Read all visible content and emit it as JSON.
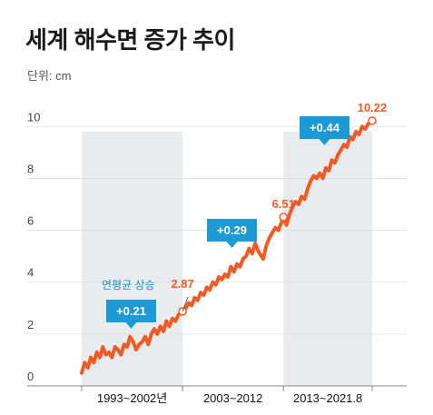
{
  "title": "세계 해수면 증가 추이",
  "unit_label": "단위: cm",
  "chart_data": {
    "type": "line",
    "ylim": [
      0,
      10.5
    ],
    "xlim": [
      1993,
      2021.8
    ],
    "y_ticks": [
      "0",
      "2",
      "4",
      "6",
      "8",
      "10"
    ],
    "periods": [
      {
        "label": "1993~2002년",
        "start": 1993,
        "end": 2003,
        "shaded": true
      },
      {
        "label": "2003~2012",
        "start": 2003,
        "end": 2013,
        "shaded": false
      },
      {
        "label": "2013~2021.8",
        "start": 2013,
        "end": 2021.8,
        "shaded": true
      }
    ],
    "rate_badges": [
      {
        "period": "1993~2002",
        "text": "+0.21"
      },
      {
        "period": "2003~2012",
        "text": "+0.29"
      },
      {
        "period": "2013~2021.8",
        "text": "+0.44"
      }
    ],
    "annotations": [
      {
        "x": 2003,
        "y": 2.87,
        "label": "2.87"
      },
      {
        "x": 2013,
        "y": 6.51,
        "label": "6.51"
      },
      {
        "x": 2021.8,
        "y": 10.22,
        "label": "10.22"
      }
    ],
    "avg_label": "연평균 상승",
    "series": [
      {
        "color": "#f15a24",
        "x": [
          1993.0,
          1993.3,
          1993.6,
          1993.9,
          1994.2,
          1994.5,
          1994.8,
          1995.1,
          1995.4,
          1995.7,
          1996.0,
          1996.3,
          1996.6,
          1996.9,
          1997.2,
          1997.5,
          1997.8,
          1998.1,
          1998.4,
          1998.7,
          1999.0,
          1999.3,
          1999.6,
          1999.9,
          2000.2,
          2000.5,
          2000.8,
          2001.1,
          2001.4,
          2001.7,
          2002.0,
          2002.3,
          2002.6,
          2003.0,
          2003.3,
          2003.6,
          2003.9,
          2004.2,
          2004.5,
          2004.8,
          2005.1,
          2005.4,
          2005.7,
          2006.0,
          2006.3,
          2006.6,
          2006.9,
          2007.2,
          2007.5,
          2007.8,
          2008.1,
          2008.4,
          2008.7,
          2009.0,
          2009.3,
          2009.6,
          2009.9,
          2010.2,
          2010.5,
          2010.8,
          2011.0,
          2011.3,
          2011.6,
          2011.9,
          2012.2,
          2012.5,
          2012.8,
          2013.0,
          2013.3,
          2013.6,
          2013.9,
          2014.2,
          2014.5,
          2014.8,
          2015.1,
          2015.4,
          2015.7,
          2016.0,
          2016.3,
          2016.6,
          2016.9,
          2017.2,
          2017.5,
          2017.8,
          2018.1,
          2018.4,
          2018.7,
          2019.0,
          2019.3,
          2019.6,
          2019.9,
          2020.2,
          2020.5,
          2020.8,
          2021.1,
          2021.4,
          2021.8
        ],
        "y": [
          0.5,
          0.9,
          0.7,
          1.1,
          0.9,
          1.3,
          1.1,
          1.5,
          1.2,
          1.3,
          1.1,
          1.5,
          1.4,
          1.2,
          1.6,
          1.5,
          1.9,
          1.7,
          1.4,
          1.6,
          1.7,
          1.9,
          1.6,
          2.0,
          2.2,
          2.0,
          2.3,
          2.1,
          2.5,
          2.3,
          2.6,
          2.5,
          2.75,
          2.87,
          3.0,
          3.2,
          3.1,
          3.4,
          3.3,
          3.6,
          3.5,
          3.8,
          3.7,
          4.0,
          3.9,
          4.2,
          4.1,
          4.3,
          4.2,
          4.6,
          4.4,
          4.7,
          4.6,
          4.9,
          5.0,
          5.3,
          5.1,
          5.5,
          5.2,
          5.0,
          4.9,
          5.4,
          5.7,
          5.9,
          6.1,
          6.0,
          6.3,
          6.51,
          6.2,
          6.6,
          6.9,
          7.1,
          7.0,
          7.3,
          7.2,
          7.6,
          7.9,
          8.1,
          8.0,
          8.2,
          8.0,
          8.4,
          8.3,
          8.7,
          8.6,
          8.9,
          9.1,
          9.3,
          9.2,
          9.6,
          9.5,
          9.8,
          9.7,
          10.0,
          9.9,
          10.1,
          10.22
        ]
      }
    ]
  }
}
